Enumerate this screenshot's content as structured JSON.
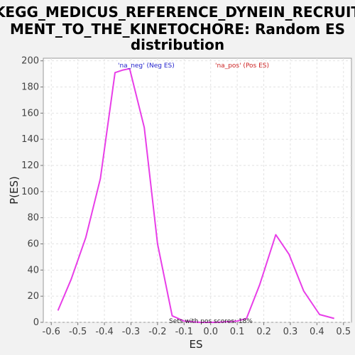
{
  "chart_data": {
    "type": "line",
    "title_lines": [
      "KEGG_MEDICUS_REFERENCE_DYNEIN_RECRUIT",
      "MENT_TO_THE_KINETOCHORE: Random ES",
      "distribution"
    ],
    "xlabel": "ES",
    "ylabel": "P(ES)",
    "xlim": [
      -0.63,
      0.53
    ],
    "ylim": [
      0,
      202
    ],
    "x_ticks": [
      -0.6,
      -0.5,
      -0.4,
      -0.3,
      -0.2,
      -0.1,
      0.0,
      0.1,
      0.2,
      0.3,
      0.4,
      0.5
    ],
    "x_tick_labels": [
      "-0.6",
      "-0.5",
      "-0.4",
      "-0.3",
      "-0.2",
      "-0.1",
      "0.0",
      "0.1",
      "0.2",
      "0.3",
      "0.4",
      "0.5"
    ],
    "y_ticks": [
      0,
      20,
      40,
      60,
      80,
      100,
      120,
      140,
      160,
      180,
      200
    ],
    "y_tick_labels": [
      "0",
      "20",
      "40",
      "60",
      "80",
      "100",
      "120",
      "140",
      "160",
      "180",
      "200"
    ],
    "grid": true,
    "series": [
      {
        "color": "#e83ee8",
        "points": [
          [
            -0.575,
            9
          ],
          [
            -0.525,
            33
          ],
          [
            -0.47,
            65
          ],
          [
            -0.415,
            110
          ],
          [
            -0.36,
            191
          ],
          [
            -0.33,
            193
          ],
          [
            -0.305,
            194
          ],
          [
            -0.25,
            149
          ],
          [
            -0.2,
            60
          ],
          [
            -0.145,
            5
          ],
          [
            -0.1,
            1
          ],
          [
            -0.04,
            0
          ],
          [
            0.02,
            0
          ],
          [
            0.1,
            1
          ],
          [
            0.135,
            3
          ],
          [
            0.185,
            29
          ],
          [
            0.245,
            67
          ],
          [
            0.295,
            52
          ],
          [
            0.35,
            24
          ],
          [
            0.41,
            6
          ],
          [
            0.465,
            3
          ]
        ]
      }
    ],
    "legend": [
      {
        "text": "'na_neg' (Neg ES)",
        "color": "#2222cc"
      },
      {
        "text": "'na_pos' (Pos ES)",
        "color": "#cc2222"
      }
    ],
    "annotation": "Sets with pos scores: 18%"
  }
}
